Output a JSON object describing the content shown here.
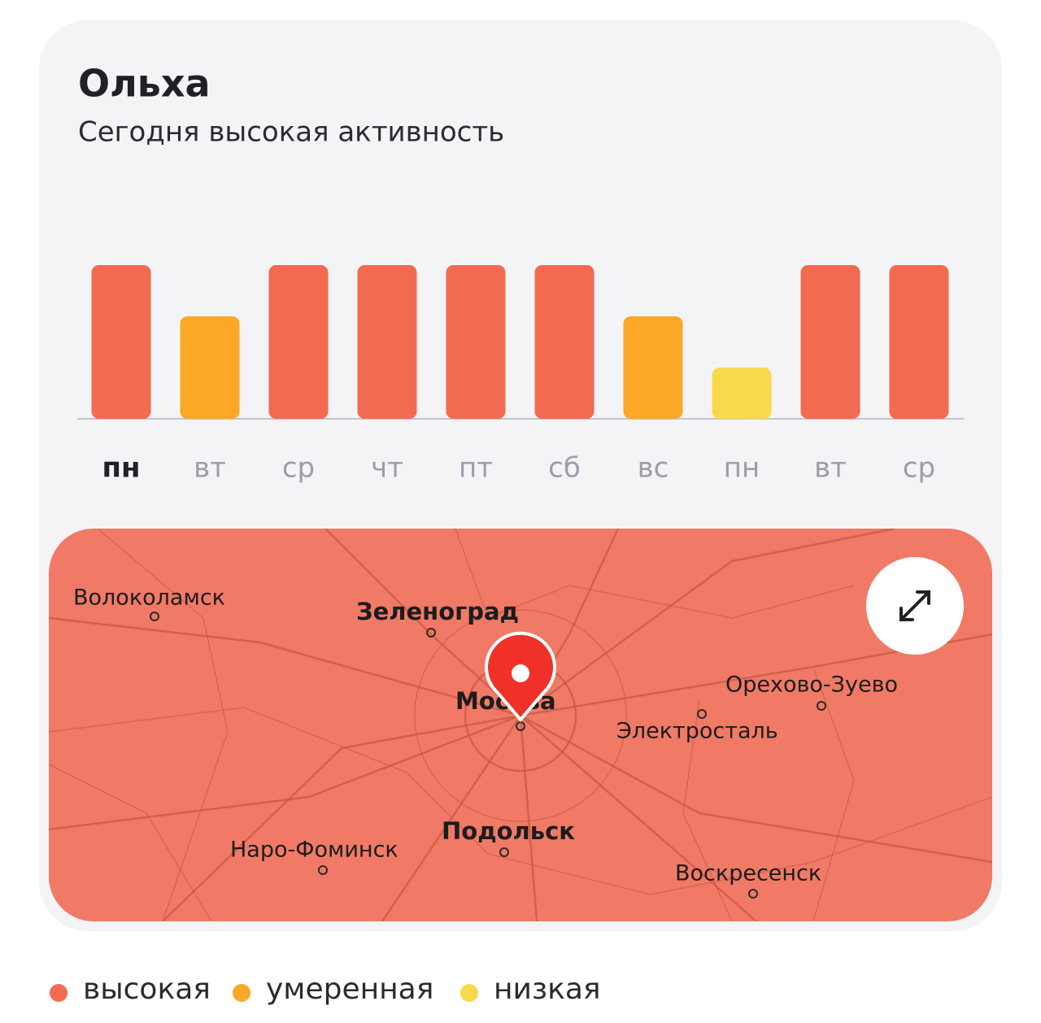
{
  "header": {
    "title": "Ольха",
    "subtitle": "Сегодня высокая активность"
  },
  "chart_data": {
    "type": "bar",
    "categories": [
      "пн",
      "вт",
      "ср",
      "чт",
      "пт",
      "сб",
      "вс",
      "пн",
      "вт",
      "ср"
    ],
    "values": [
      3,
      2,
      3,
      3,
      3,
      3,
      2,
      1,
      3,
      3
    ],
    "ylim": [
      0,
      3
    ],
    "selected_category": 0,
    "legend": [
      {
        "name": "высокая",
        "value": 3,
        "color": "#f26a50"
      },
      {
        "name": "умеренная",
        "value": 2,
        "color": "#faa826"
      },
      {
        "name": "низкая",
        "value": 1,
        "color": "#f9d94c"
      }
    ]
  },
  "map": {
    "labels": [
      "Волоколамск",
      "Зеленоград",
      "Москва",
      "Орехово-Зуево",
      "Электросталь",
      "Наро-Фоминск",
      "Подольск",
      "Воскресенск"
    ]
  }
}
